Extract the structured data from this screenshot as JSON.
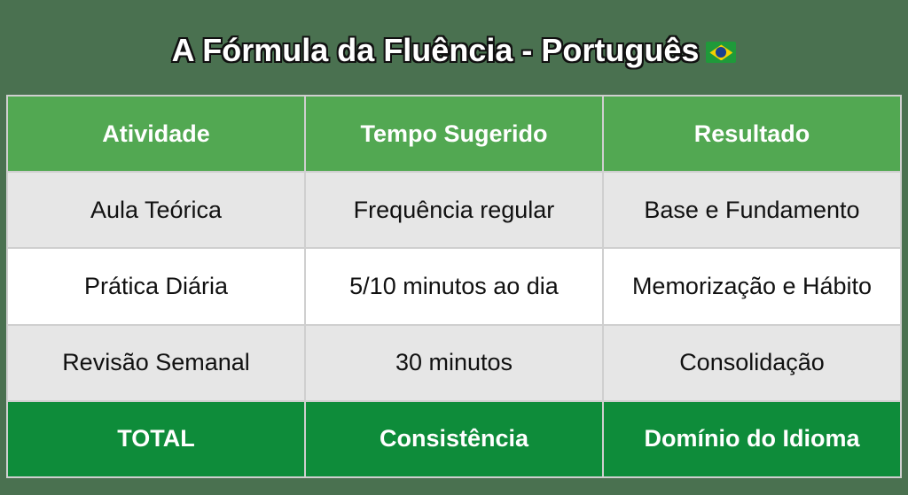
{
  "title": "A Fórmula da Fluência - Português",
  "title_icon": "brazil-flag-icon",
  "colors": {
    "background": "#4a7150",
    "header": "#52a852",
    "total_row": "#0e8c3a"
  },
  "table": {
    "headers": [
      "Atividade",
      "Tempo Sugerido",
      "Resultado"
    ],
    "rows": [
      [
        "Aula Teórica",
        "Frequência regular",
        "Base e Fundamento"
      ],
      [
        "Prática Diária",
        "5/10 minutos ao dia",
        "Memorização e Hábito"
      ],
      [
        "Revisão Semanal",
        "30 minutos",
        "Consolidação"
      ]
    ],
    "total": [
      "TOTAL",
      "Consistência",
      "Domínio do Idioma"
    ]
  }
}
